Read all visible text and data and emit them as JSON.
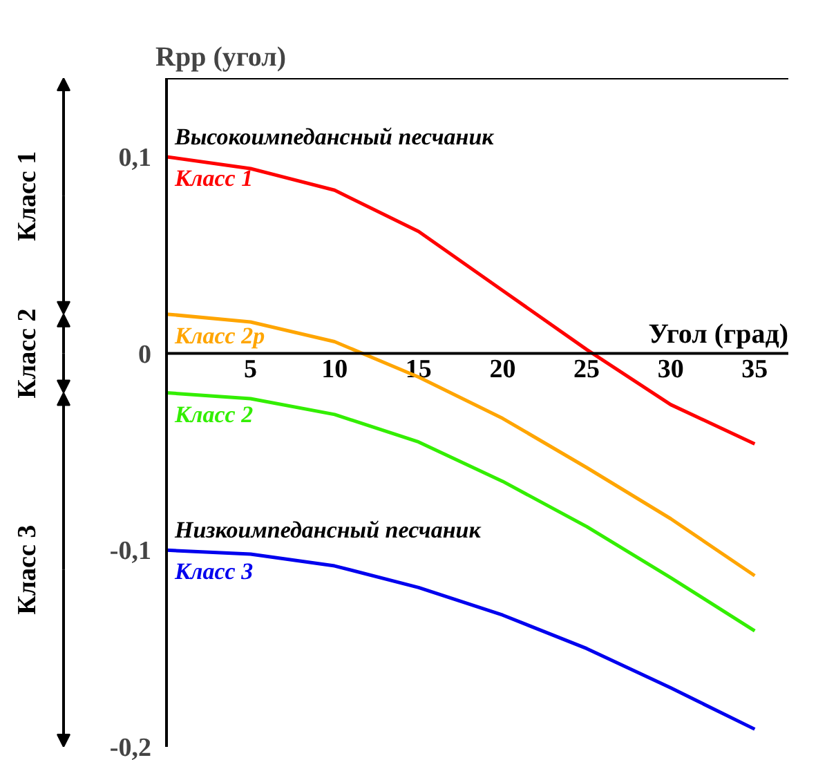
{
  "chart_data": {
    "type": "line",
    "xlabel": "Угол (град)",
    "ylabel": "Rpp (угол)",
    "x": [
      0,
      5,
      10,
      15,
      20,
      25,
      30,
      35
    ],
    "series": [
      {
        "name": "Класс 1",
        "color": "#ff0000",
        "values": [
          0.1,
          0.094,
          0.083,
          0.062,
          0.032,
          0.002,
          -0.026,
          -0.046
        ]
      },
      {
        "name": "Класс 2p",
        "color": "#ffa500",
        "values": [
          0.02,
          0.016,
          0.006,
          -0.012,
          -0.033,
          -0.058,
          -0.084,
          -0.113
        ]
      },
      {
        "name": "Класс 2",
        "color": "#33ee00",
        "values": [
          -0.02,
          -0.023,
          -0.031,
          -0.045,
          -0.065,
          -0.088,
          -0.114,
          -0.141
        ]
      },
      {
        "name": "Класс 3",
        "color": "#0000ee",
        "values": [
          -0.1,
          -0.102,
          -0.108,
          -0.119,
          -0.133,
          -0.15,
          -0.17,
          -0.191
        ]
      }
    ],
    "xlim": [
      0,
      37
    ],
    "ylim": [
      -0.2,
      0.14
    ],
    "xticks": [
      5,
      10,
      15,
      20,
      25,
      30,
      35
    ],
    "yticks": [
      {
        "value": 0.1,
        "label": "0,1"
      },
      0,
      {
        "value": -0.1,
        "label": "-0,1"
      },
      {
        "value": -0.2,
        "label": "-0,2"
      }
    ],
    "annotations": [
      "Класс 1",
      "Класс 2",
      "Класс 3",
      {
        "text": "Высокоимпедансный песчаник",
        "x": 0,
        "y": 0.1
      },
      {
        "text": "Низкоимпедансный песчаник",
        "x": 0,
        "y": -0.1
      }
    ],
    "grid": false,
    "marker": "none",
    "line_style": "solid"
  }
}
